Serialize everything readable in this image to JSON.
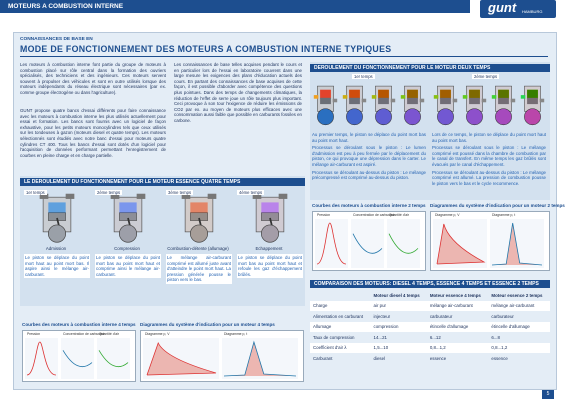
{
  "header": {
    "title": "MOTEURS A COMBUSTION INTERNE",
    "logo": "gunt",
    "logo_sub": "HAMBURG"
  },
  "page": {
    "kicker": "CONNAISSANCES DE BASE EN",
    "title": "MODE DE FONCTIONNEMENT DES MOTEURS A COMBUSTION INTERNE TYPIQUES",
    "page_number": "5"
  },
  "intro": {
    "paragraphs": [
      "Les moteurs à combustion interne font partie du groupe de moteurs à combustion placé sur rôle central dans la formation des ouvriers spécialisés, des techniciens et des ingénieurs. Ces moteurs servent souvent à propulser des véhicules et sont en outre utilisés lorsque des moteurs indépendants du réseau électrique sont nécessaires (par ex. comme groupe électrogène ou dans l'agriculture).",
      "GUNT propose quatre bancs d'essai différents pour faire connaissance avec les moteurs à combustion interne les plus utilisés actuellement pour essai et formation. Les bancs sont fournis avec un logiciel de façon exhaustive, pour les petits moteurs monocylindres tels que ceux utilisés sur les tondeuses à gazon (moteurs diesel et quatre temps). Les moteurs sélectionnés sont étudiés avec notre banc d'essai pour moteurs quatre cylindres CT 400. Tous les bancs d'essai sont dotés d'un logiciel pour l'acquisition de données performant permettant l'enregistrement de courbes en pleine charge et en charge partielle.",
      "Les connaissances de base telles acquises pendant le cours et en particulier lors de l'essai en laboratoire couvrent dans une large mesure les exigences des plans d'éducation actuels des cours. En partant des connaissances de base acquises de cette façon, il est possible d'aborder avec compétence des questions plus pointues. Dans des temps de changements climatiques, la réduction de l'effet de serre joue un rôle toujours plus important. Ceci provoque à son tour l'exigence de réduire les émissions de CO2 par ex. au moyen de moteurs plus efficaces avec une consommation aussi faible que possible en carburants fossiles en carbone."
    ]
  },
  "four_stroke": {
    "title": "LE DEROULEMENT DU FONCTIONNEMENT POUR LE MOTEUR ESSENCE QUATRE TEMPS",
    "strokes": [
      {
        "label": "1er temps",
        "name": "Admission",
        "text": "Le piston se déplace du point mort haut au point mort bas. Il aspire ainsi le mélange air-carburant."
      },
      {
        "label": "2ème temps",
        "name": "Compression",
        "text": "Le piston se déplace du point mort bas au point mort haut et comprime ainsi le mélange air-carburant."
      },
      {
        "label": "3ème temps",
        "name": "Combustion-détente (allumage)",
        "text": "Le mélange air-carburant comprimé est allumé juste avant d'atteindre le point mort haut. La pression générée pousse le piston vers le bas."
      },
      {
        "label": "4ème temps",
        "name": "Echappement",
        "text": "Le piston se déplace du point mort bas au point mort haut et refoule les gaz d'échappement brûlés."
      }
    ]
  },
  "two_stroke": {
    "title": "DEROULEMENT DU FONCTIONNEMENT POUR LE MOTEUR DEUX TEMPS",
    "strokes": [
      {
        "label": "1er temps",
        "paragraphs": [
          "Au premier temps, le piston se déplace du point mort bas au point mort haut.",
          "Processus se déroulant sous le piston : Le lumen d'admission est peu à peu fermée par le déplacement du piston, ce qui provoque une dépression dans le carter. Le mélange air-carburant est aspiré.",
          "Processus se déroulant au-dessus du piston : Le mélange précompressé est comprimé au-dessus du piston."
        ]
      },
      {
        "label": "2ème temps",
        "paragraphs": [
          "Lors de ce temps, le piston se déplace du point mort haut au point mort bas.",
          "Processus se déroulant sous le piston : Le mélange comprimé est poussé dans la chambre de combustion par le canal de transfert. En même temps les gaz brûlés sont évacués par le canal d'échappement.",
          "Processus se déroulant au-dessus du piston : Le mélange comprimé est allumé. La pression de combustion pousse le piston vers le bas et le cycle recommence."
        ]
      }
    ]
  },
  "charts": {
    "four_curves": {
      "title": "Courbes des moteurs à combustion interne 4 temps",
      "labels": [
        "Pression",
        "Concentration de carburant",
        "Quantité d'air"
      ]
    },
    "four_diagrams": {
      "title": "Diagrammes du système d'indication pour un moteur 4 temps",
      "labels": [
        "Diagramme p, V",
        "Diagramme p, t"
      ]
    },
    "two_curves": {
      "title": "Courbes des moteurs à combustion interne 2 temps",
      "labels": [
        "Pression",
        "Concentration de carburant",
        "Quantité d'air"
      ]
    },
    "two_diagrams": {
      "title": "Diagrammes du système d'indication pour un moteur 2 temps",
      "labels": [
        "Diagramme p, V",
        "Diagramme p, t"
      ]
    }
  },
  "comparison": {
    "title": "COMPARAISON DES MOTEURS: DIESEL 4 TEMPS, ESSENCE 4 TEMPS ET ESSENCE 2 TEMPS",
    "columns": [
      "Moteur diesel 4 temps",
      "Moteur essence 4 temps",
      "Moteur essence 2 temps"
    ],
    "rows": [
      [
        "Charge",
        "air pur",
        "mélange air-carburant",
        "mélange air-carburant"
      ],
      [
        "Alimentation en carburant",
        "injecteur",
        "carburateur",
        "carburateur"
      ],
      [
        "Allumage",
        "compression",
        "étincelle d'allumage",
        "étincelle d'allumage"
      ],
      [
        "Taux de compression",
        "14...21",
        "6...12",
        "6...8"
      ],
      [
        "Coefficient d'air λ",
        "1,5...10",
        "0,8...1,2",
        "0,8...1,2"
      ],
      [
        "Carburant",
        "diesel",
        "essence",
        "essence"
      ]
    ]
  }
}
